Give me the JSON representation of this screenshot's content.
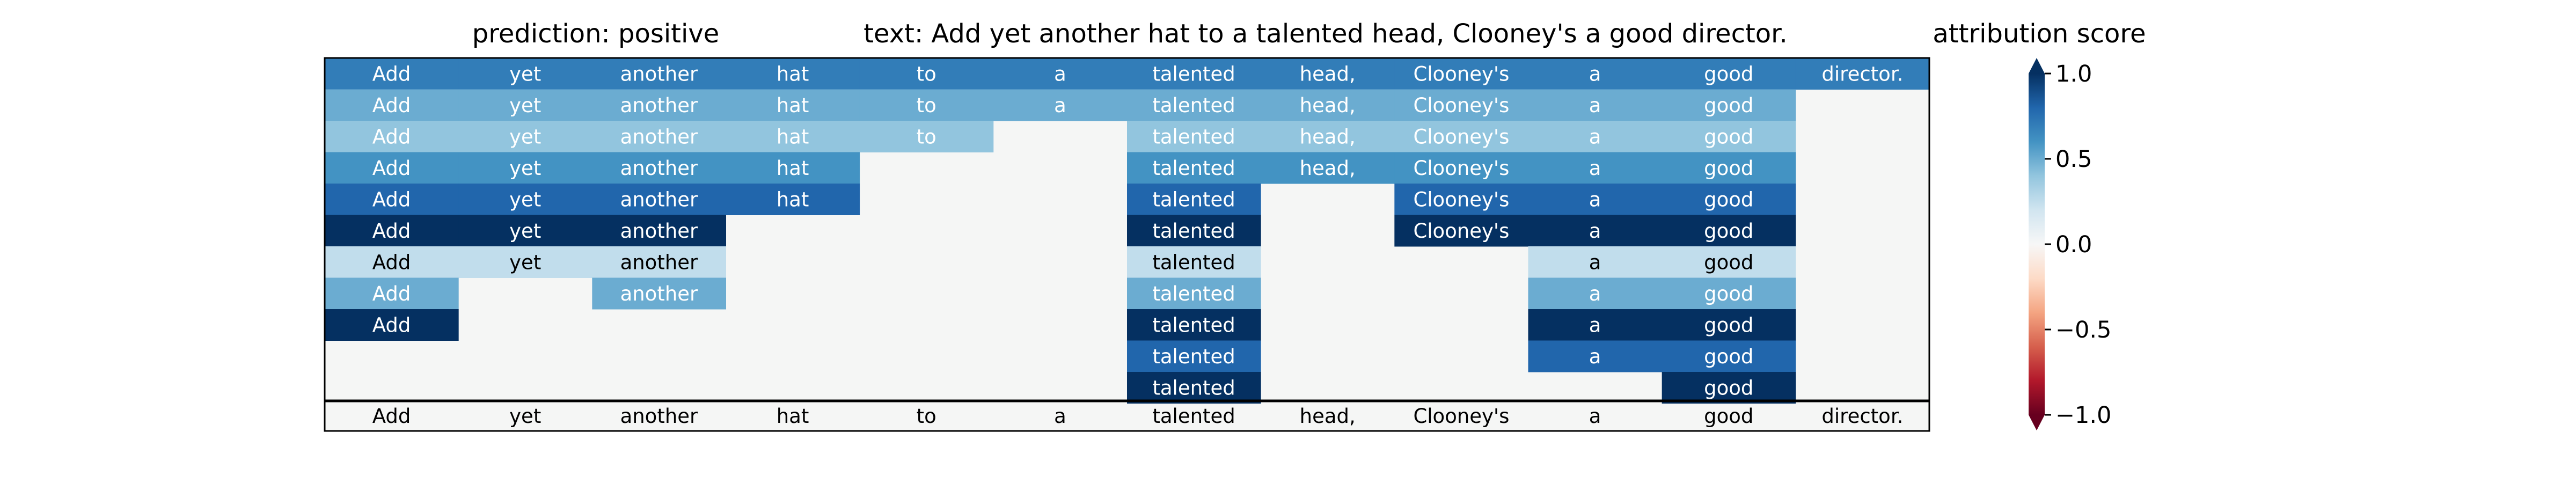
{
  "chart_data": {
    "type": "heatmap",
    "title_prediction": "prediction:  positive",
    "title_text": "text:  Add yet another hat to a talented head, Clooney's a good director.",
    "colorbar_title": "attribution score",
    "colormap": "RdBu",
    "vmin": -1.0,
    "vmax": 1.0,
    "colorbar_ticks": [
      "1.0",
      "0.5",
      "0.0",
      "−0.5",
      "−1.0"
    ],
    "colorbar_tick_values": [
      1.0,
      0.5,
      0.0,
      -0.5,
      -1.0
    ],
    "background_color": "#f5f6f5",
    "tokens": [
      "Add",
      "yet",
      "another",
      "hat",
      "to",
      "a",
      "talented",
      "head,",
      "Clooney's",
      "a",
      "good",
      "director."
    ],
    "rows": [
      [
        0.7,
        0.7,
        0.7,
        0.7,
        0.7,
        0.7,
        0.7,
        0.7,
        0.7,
        0.7,
        0.7,
        0.7
      ],
      [
        0.5,
        0.5,
        0.5,
        0.5,
        0.5,
        0.5,
        0.5,
        0.5,
        0.5,
        0.5,
        0.5,
        null
      ],
      [
        0.4,
        0.4,
        0.4,
        0.4,
        0.4,
        null,
        0.4,
        0.4,
        0.4,
        0.4,
        0.4,
        null
      ],
      [
        0.6,
        0.6,
        0.6,
        0.6,
        null,
        null,
        0.6,
        0.6,
        0.6,
        0.6,
        0.6,
        null
      ],
      [
        0.8,
        0.8,
        0.8,
        0.8,
        null,
        null,
        0.8,
        null,
        0.8,
        0.8,
        0.8,
        null
      ],
      [
        1.0,
        1.0,
        1.0,
        null,
        null,
        null,
        1.0,
        null,
        1.0,
        1.0,
        1.0,
        null
      ],
      [
        0.25,
        0.25,
        0.25,
        null,
        null,
        null,
        0.25,
        null,
        null,
        0.25,
        0.25,
        null
      ],
      [
        0.5,
        null,
        0.5,
        null,
        null,
        null,
        0.5,
        null,
        null,
        0.5,
        0.5,
        null
      ],
      [
        1.0,
        null,
        null,
        null,
        null,
        null,
        1.0,
        null,
        null,
        1.0,
        1.0,
        null
      ],
      [
        null,
        null,
        null,
        null,
        null,
        null,
        0.8,
        null,
        null,
        0.8,
        0.8,
        null
      ],
      [
        null,
        null,
        null,
        null,
        null,
        null,
        1.0,
        null,
        null,
        null,
        1.0,
        null
      ]
    ]
  }
}
